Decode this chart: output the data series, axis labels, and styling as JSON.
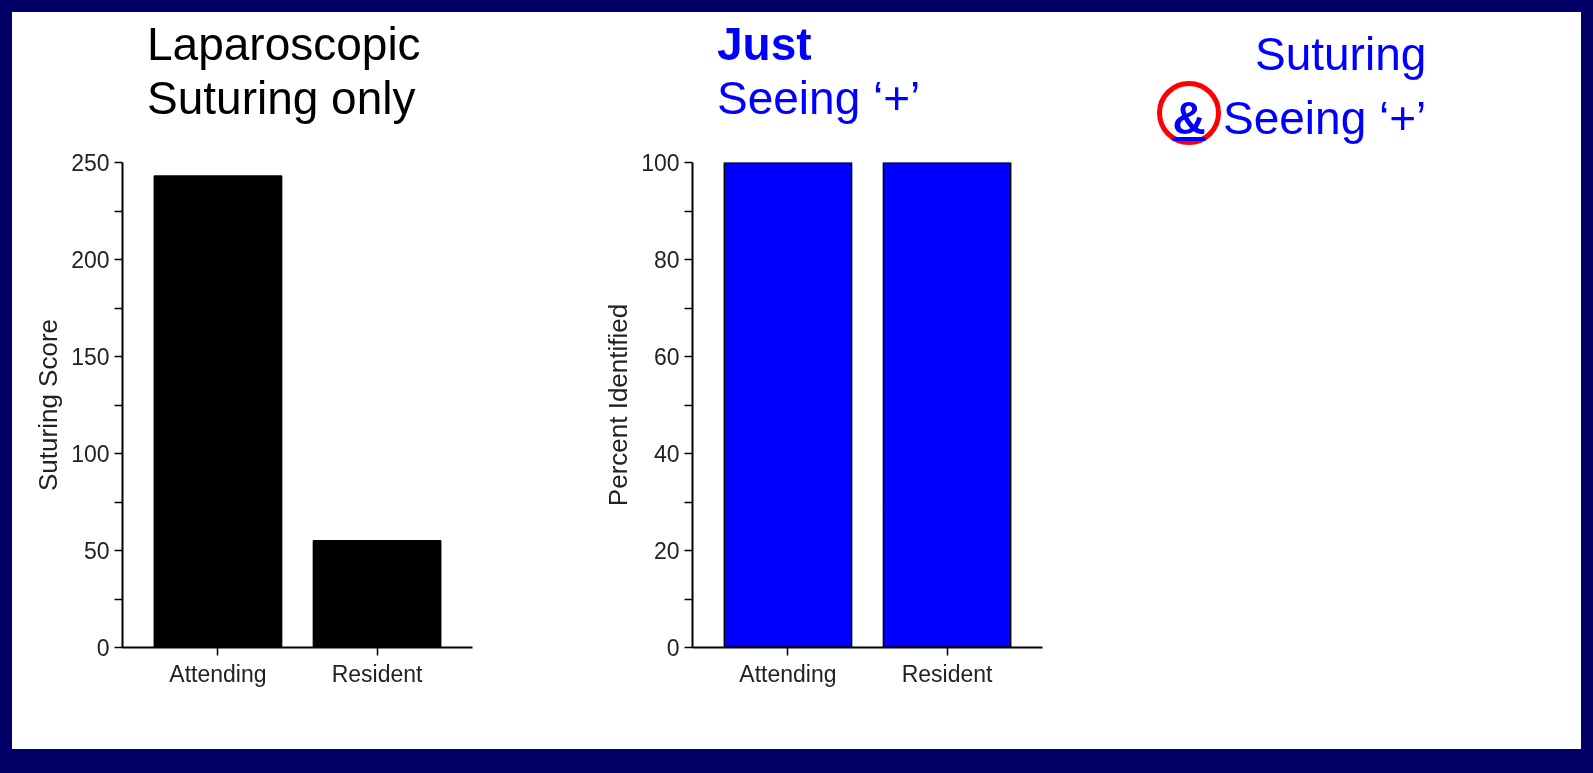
{
  "chart_data": [
    {
      "type": "bar",
      "title": "Laparoscopic\nSuturing only",
      "ylabel": "Suturing Score",
      "categories": [
        "Attending",
        "Resident"
      ],
      "values": [
        243,
        55
      ],
      "color": "#000000",
      "ylim": [
        0,
        250
      ],
      "yticks": [
        0,
        {
          "value": 25,
          "label": null
        },
        50,
        {
          "value": 75,
          "label": null
        },
        100,
        {
          "value": 125,
          "label": null
        },
        150,
        {
          "value": 175,
          "label": null
        },
        200,
        {
          "value": 225,
          "label": null
        },
        250
      ]
    },
    {
      "type": "bar",
      "title": "Just\nSeeing ‘+’",
      "ylabel": "Percent Identified",
      "categories": [
        "Attending",
        "Resident"
      ],
      "values": [
        100,
        100
      ],
      "color": "#0000ff",
      "ylim": [
        0,
        100
      ],
      "yticks": [
        0,
        {
          "value": 10,
          "label": null
        },
        20,
        {
          "value": 30,
          "label": null
        },
        40,
        {
          "value": 50,
          "label": null
        },
        60,
        {
          "value": 70,
          "label": null
        },
        80,
        {
          "value": 90,
          "label": null
        },
        100
      ]
    },
    {
      "type": "other",
      "title": "Suturing\n& Seeing ‘+’",
      "color": "#0000ff"
    }
  ]
}
